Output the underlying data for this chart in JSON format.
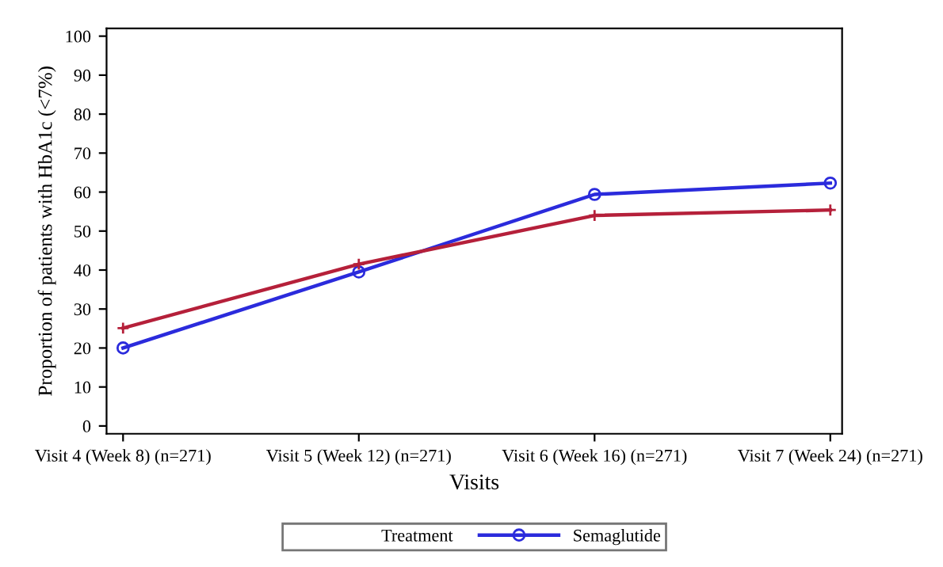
{
  "chart_data": {
    "type": "line",
    "xlabel": "Visits",
    "ylabel": "Proportion of patients with HbA1c (<7%)",
    "categories": [
      "Visit 4 (Week 8) (n=271)",
      "Visit 5 (Week 12) (n=271)",
      "Visit 6 (Week 16) (n=271)",
      "Visit 7 (Week 24) (n=271)"
    ],
    "series": [
      {
        "name": "Semaglutide",
        "color": "#2b2bdc",
        "marker": "circle",
        "values": [
          20,
          39.5,
          59.4,
          62.3
        ]
      },
      {
        "color": "#b5203a",
        "marker": "cross",
        "values": [
          25.1,
          41.5,
          54,
          55.4
        ]
      }
    ],
    "ylim": [
      -2,
      102
    ],
    "yticks": [
      0,
      10,
      20,
      30,
      40,
      50,
      60,
      70,
      80,
      90,
      100
    ],
    "legend": "bottom",
    "legend_title": "Treatment",
    "grid": false,
    "line_style": "solid"
  }
}
